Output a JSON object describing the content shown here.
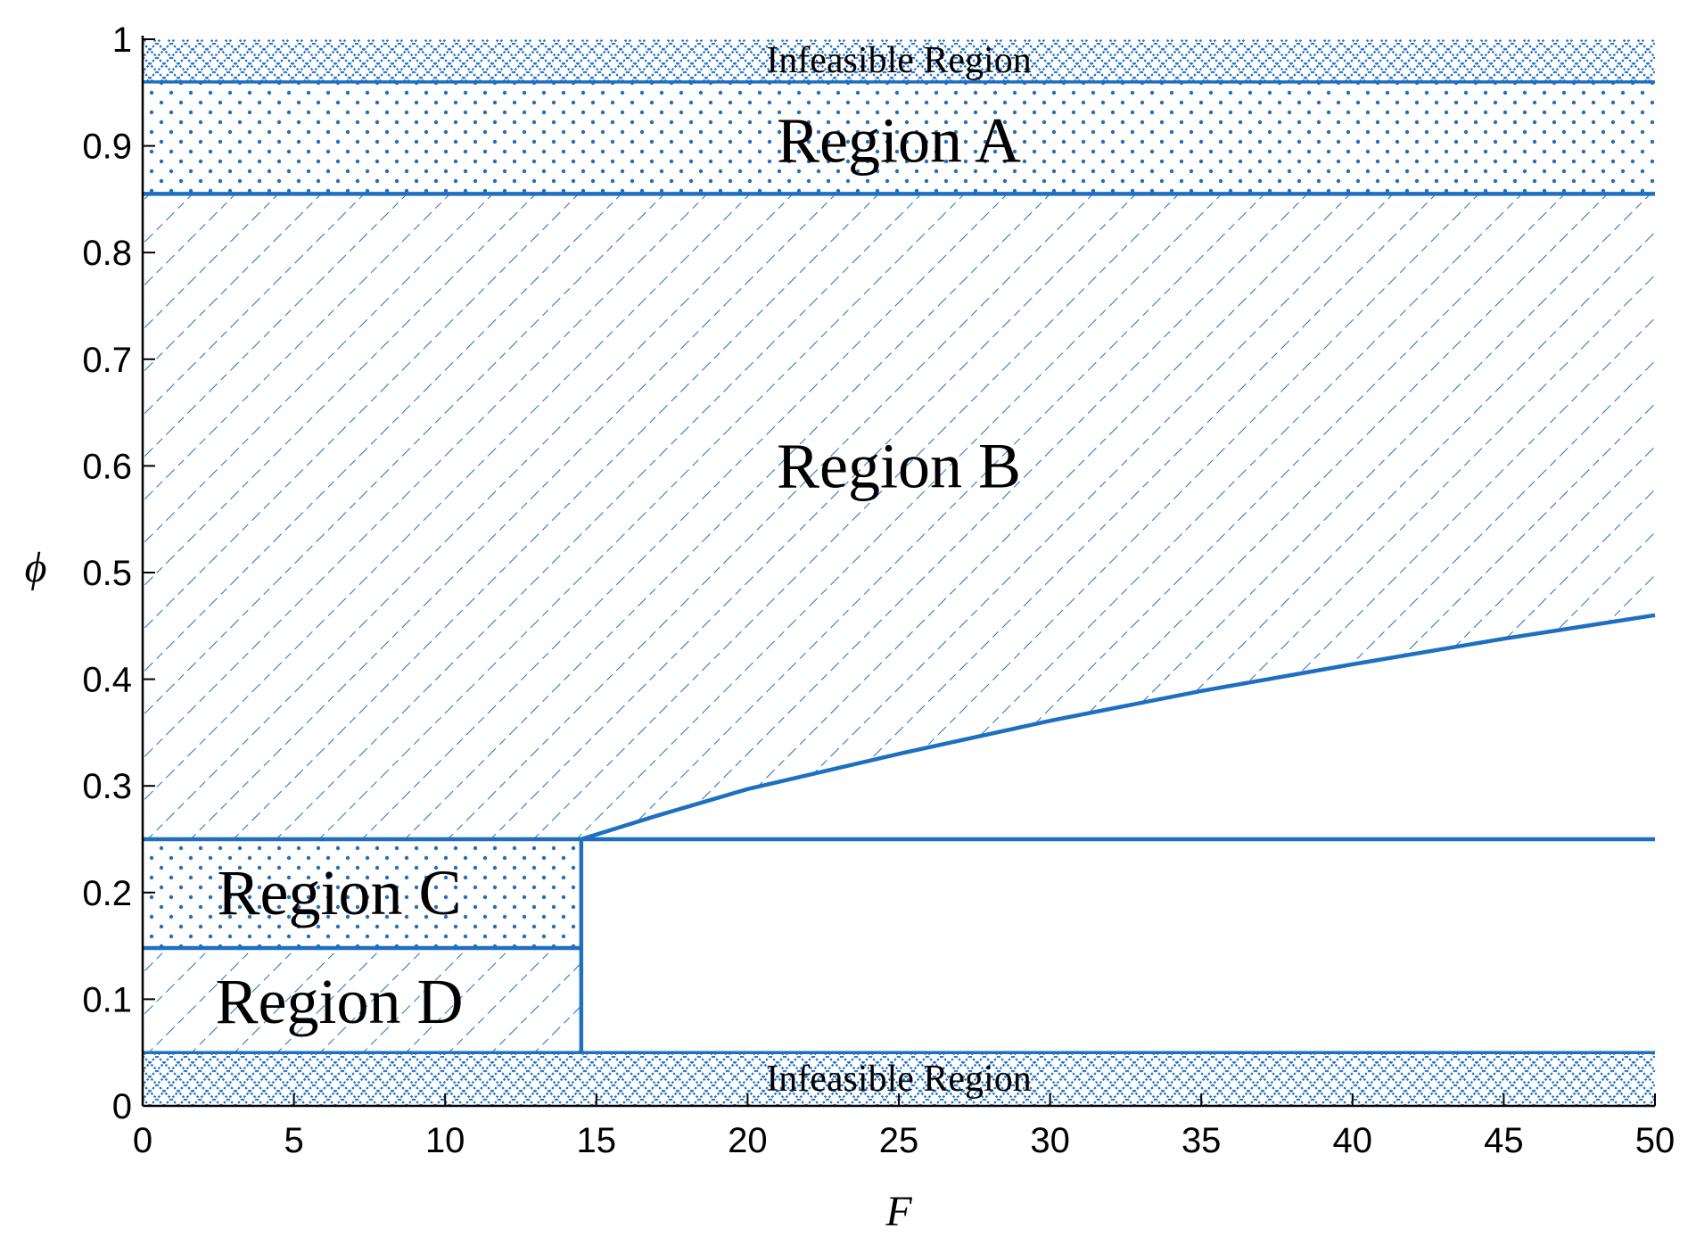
{
  "chart_data": {
    "type": "area",
    "title": "",
    "xlabel": "F",
    "ylabel": "ϕ",
    "xlim": [
      0,
      50
    ],
    "ylim": [
      0,
      1
    ],
    "xticks": [
      {
        "value": 0,
        "label": "0"
      },
      {
        "value": 5,
        "label": "5"
      },
      {
        "value": 10,
        "label": "10"
      },
      {
        "value": 15,
        "label": "15"
      },
      {
        "value": 20,
        "label": "20"
      },
      {
        "value": 25,
        "label": "25"
      },
      {
        "value": 30,
        "label": "30"
      },
      {
        "value": 35,
        "label": "35"
      },
      {
        "value": 40,
        "label": "40"
      },
      {
        "value": 45,
        "label": "45"
      },
      {
        "value": 50,
        "label": "50"
      }
    ],
    "yticks": [
      {
        "value": 0,
        "label": "0"
      },
      {
        "value": 0.1,
        "label": "0.1"
      },
      {
        "value": 0.2,
        "label": "0.2"
      },
      {
        "value": 0.3,
        "label": "0.3"
      },
      {
        "value": 0.4,
        "label": "0.4"
      },
      {
        "value": 0.5,
        "label": "0.5"
      },
      {
        "value": 0.6,
        "label": "0.6"
      },
      {
        "value": 0.7,
        "label": "0.7"
      },
      {
        "value": 0.8,
        "label": "0.8"
      },
      {
        "value": 0.9,
        "label": "0.9"
      },
      {
        "value": 1,
        "label": "1"
      }
    ],
    "grid": false,
    "color": "#1f6fc0",
    "boundaries": {
      "infeasible_top": 0.96,
      "region_a_lower": 0.855,
      "region_c_upper": 0.25,
      "region_d_upper": 0.148,
      "infeasible_bottom": 0.05,
      "f_split": 14.5
    },
    "curve": {
      "x": [
        14.5,
        17,
        20,
        25,
        30,
        35,
        40,
        45,
        50
      ],
      "y": [
        0.25,
        0.272,
        0.297,
        0.33,
        0.361,
        0.389,
        0.414,
        0.438,
        0.46
      ]
    },
    "regions": [
      {
        "key": "infeasible_top",
        "label": "Infeasible Region",
        "pattern": "crosshatch",
        "label_at": [
          25,
          0.98
        ]
      },
      {
        "key": "region_a",
        "label": "Region A",
        "pattern": "dots",
        "label_at": [
          25,
          0.905
        ]
      },
      {
        "key": "region_b",
        "label": "Region B",
        "pattern": "diagonal-dashed",
        "label_at": [
          25,
          0.6
        ]
      },
      {
        "key": "region_c",
        "label": "Region C",
        "pattern": "dots",
        "label_at": [
          6.5,
          0.2
        ]
      },
      {
        "key": "region_d",
        "label": "Region D",
        "pattern": "diagonal-dashed",
        "label_at": [
          6.5,
          0.098
        ]
      },
      {
        "key": "infeasible_bottom",
        "label": "Infeasible Region",
        "pattern": "crosshatch",
        "label_at": [
          25,
          0.025
        ]
      }
    ]
  }
}
